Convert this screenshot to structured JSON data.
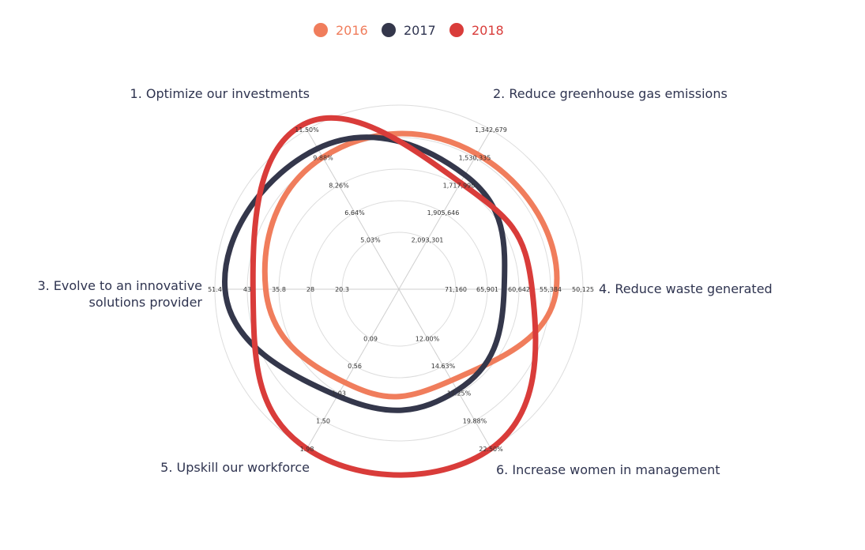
{
  "chart_data": {
    "type": "radar",
    "legend_position": "top-center",
    "series": [
      {
        "name": "2016",
        "color": "#f07d5c",
        "values": [
          0.75,
          0.78,
          0.79,
          0.38,
          0.4,
          0.6
        ]
      },
      {
        "name": "2017",
        "color": "#34374b",
        "values": [
          0.83,
          0.59,
          0.38,
          0.47,
          0.52,
          0.92
        ]
      },
      {
        "name": "2018",
        "color": "#d93c3a",
        "values": [
          1.05,
          0.52,
          0.6,
          1.0,
          1.0,
          0.7
        ]
      }
    ],
    "axes": [
      {
        "label": "1. Optimize our investments",
        "ticks": [
          "5.03%",
          "6.64%",
          "8.26%",
          "9.88%",
          "11.50%"
        ]
      },
      {
        "label": "2. Reduce greenhouse gas emissions",
        "ticks": [
          "2,093,301",
          "1,905,646",
          "1,717,990",
          "1,530,335",
          "1,342,679"
        ]
      },
      {
        "label": "4. Reduce waste generated",
        "ticks": [
          "71,160",
          "65,901",
          "60,642",
          "55,384",
          "50,125"
        ]
      },
      {
        "label": "6. Increase women in management",
        "ticks": [
          "12.00%",
          "14.63%",
          "17.25%",
          "19.88%",
          "22.50%"
        ]
      },
      {
        "label": "5. Upskill our workforce",
        "ticks": [
          "0.09",
          "0.56",
          "1.03",
          "1.50",
          "1.98"
        ]
      },
      {
        "label": "3. Evolve to an innovative solutions provider",
        "label_lines": [
          "3. Evolve to an innovative",
          "solutions provider"
        ],
        "ticks": [
          "20.3",
          "28",
          "35.8",
          "43",
          "51.4"
        ]
      }
    ],
    "value_note": "values are normalized 0-1 along each axis between innermost and outermost tick",
    "grid": true
  }
}
